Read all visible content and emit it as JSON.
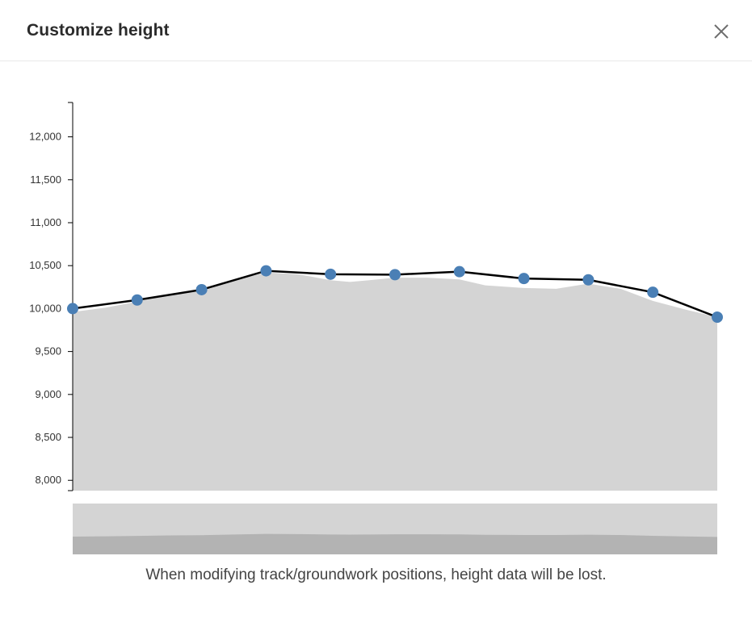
{
  "dialog": {
    "title": "Customize height",
    "close_icon": "close-icon",
    "note": "When modifying track/groundwork positions, height data will be lost."
  },
  "chart_data": {
    "type": "line",
    "title": "",
    "xlabel": "",
    "ylabel": "",
    "ylim": [
      7880,
      12400
    ],
    "yticks": [
      8000,
      8500,
      9000,
      9500,
      10000,
      10500,
      11000,
      11500,
      12000
    ],
    "ytick_labels": [
      "8,000",
      "8,500",
      "9,000",
      "9,500",
      "10,000",
      "10,500",
      "11,000",
      "11,500",
      "12,000"
    ],
    "grid": false,
    "series": [
      {
        "kind": "line",
        "color": "#000000",
        "marker_color": "#4a7fb5",
        "x": [
          0,
          1,
          2,
          3,
          4,
          5,
          6,
          7,
          8,
          9,
          10
        ],
        "values": [
          10000,
          10100,
          10220,
          10440,
          10400,
          10395,
          10430,
          10350,
          10335,
          10190,
          9900
        ]
      },
      {
        "kind": "area",
        "color": "#d4d4d4",
        "x": [
          0,
          0.5,
          1,
          1.5,
          2,
          2.5,
          3,
          3.5,
          4,
          4.3,
          4.6,
          5,
          5.5,
          6,
          6.4,
          7,
          7.5,
          8,
          8.5,
          9,
          9.5,
          10
        ],
        "values": [
          9960,
          10010,
          10080,
          10170,
          10200,
          10330,
          10420,
          10400,
          10330,
          10310,
          10330,
          10360,
          10360,
          10340,
          10270,
          10240,
          10230,
          10290,
          10230,
          10090,
          9990,
          9900
        ]
      }
    ],
    "overview": {
      "background_color": "#d4d4d4",
      "profile_color": "#b3b3b3"
    }
  }
}
